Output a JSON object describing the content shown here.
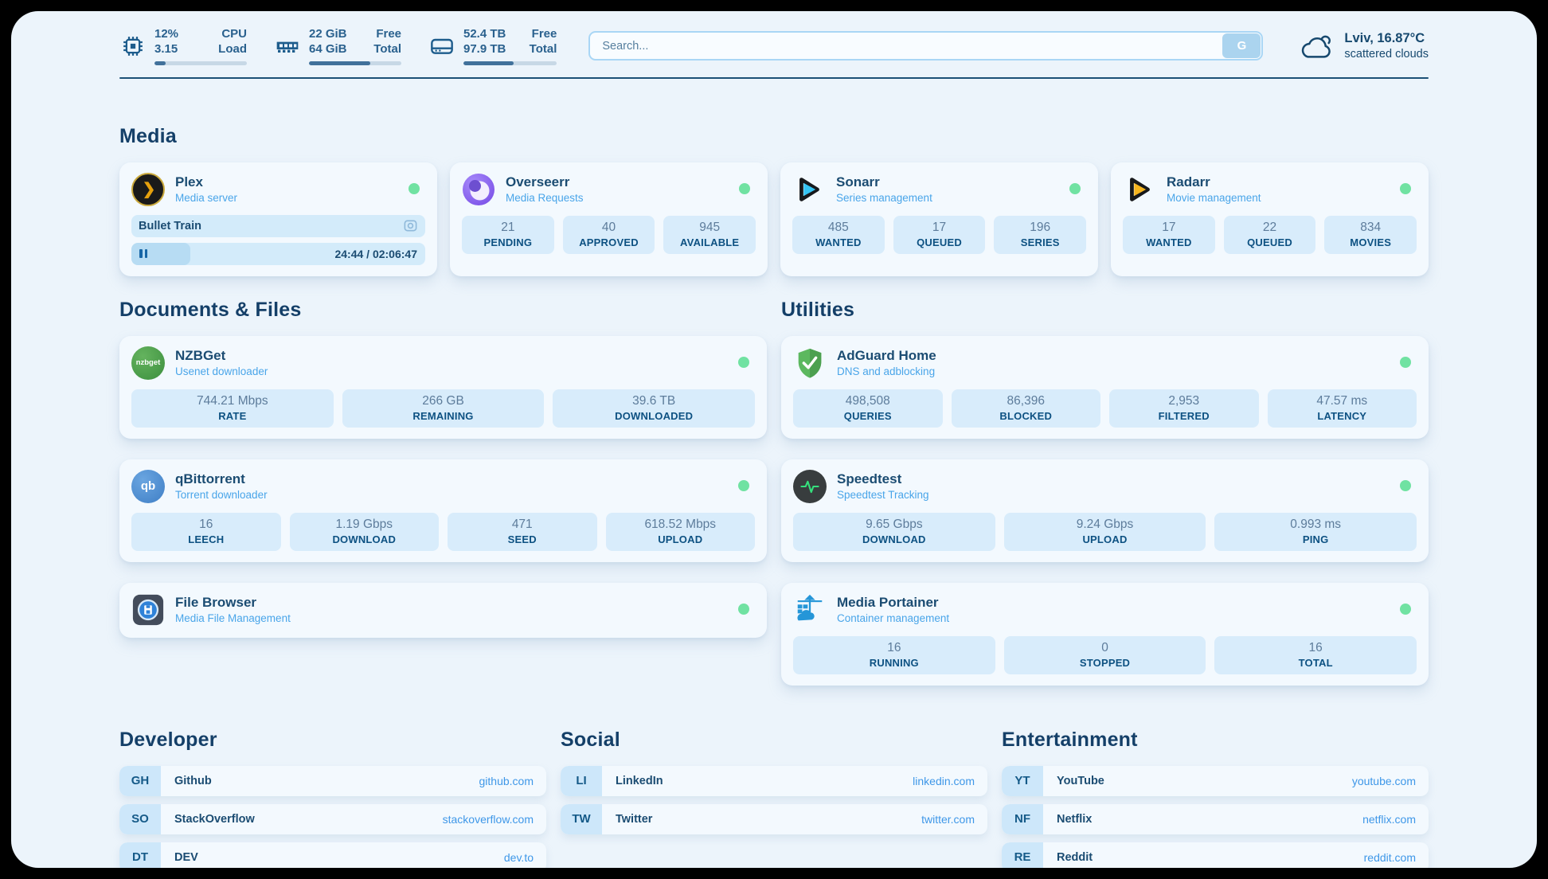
{
  "colors": {
    "page_bg": "#ecf4fb",
    "card_bg": "#f3f9fe",
    "stat_box_bg": "#d8ecfb",
    "navy_text": "#1b4c72",
    "accent_blue": "#3e97e8",
    "status_online": "#70e2a2",
    "progress_fill": "#41719b"
  },
  "header": {
    "stats": [
      {
        "icon": "cpu-icon",
        "value_top": "12%",
        "value_bottom": "3.15",
        "label_top": "CPU",
        "label_bottom": "Load",
        "progress_pct": 12
      },
      {
        "icon": "ram-icon",
        "value_top": "22 GiB",
        "value_bottom": "64 GiB",
        "label_top": "Free",
        "label_bottom": "Total",
        "progress_pct": 66
      },
      {
        "icon": "disk-icon",
        "value_top": "52.4 TB",
        "value_bottom": "97.9 TB",
        "label_top": "Free",
        "label_bottom": "Total",
        "progress_pct": 54
      }
    ],
    "search": {
      "placeholder": "Search...",
      "provider_button": "G"
    },
    "weather": {
      "icon": "cloud-icon",
      "location": "Lviv, 16.87°C",
      "condition": "scattered clouds"
    }
  },
  "media": {
    "heading": "Media",
    "plex": {
      "name": "Plex",
      "desc": "Media server",
      "now_playing": "Bullet Train",
      "progress_pct": 20,
      "time": "24:44 / 02:06:47"
    },
    "overseerr": {
      "name": "Overseerr",
      "desc": "Media Requests",
      "stats": [
        {
          "value": "21",
          "label": "PENDING"
        },
        {
          "value": "40",
          "label": "APPROVED"
        },
        {
          "value": "945",
          "label": "AVAILABLE"
        }
      ]
    },
    "sonarr": {
      "name": "Sonarr",
      "desc": "Series management",
      "stats": [
        {
          "value": "485",
          "label": "WANTED"
        },
        {
          "value": "17",
          "label": "QUEUED"
        },
        {
          "value": "196",
          "label": "SERIES"
        }
      ]
    },
    "radarr": {
      "name": "Radarr",
      "desc": "Movie management",
      "stats": [
        {
          "value": "17",
          "label": "WANTED"
        },
        {
          "value": "22",
          "label": "QUEUED"
        },
        {
          "value": "834",
          "label": "MOVIES"
        }
      ]
    }
  },
  "documents": {
    "heading": "Documents & Files",
    "nzbget": {
      "name": "NZBGet",
      "desc": "Usenet downloader",
      "badge": "nzbget",
      "stats": [
        {
          "value": "744.21 Mbps",
          "label": "RATE"
        },
        {
          "value": "266 GB",
          "label": "REMAINING"
        },
        {
          "value": "39.6 TB",
          "label": "DOWNLOADED"
        }
      ]
    },
    "qbittorrent": {
      "name": "qBittorrent",
      "desc": "Torrent downloader",
      "badge": "qb",
      "stats": [
        {
          "value": "16",
          "label": "LEECH"
        },
        {
          "value": "1.19 Gbps",
          "label": "DOWNLOAD"
        },
        {
          "value": "471",
          "label": "SEED"
        },
        {
          "value": "618.52 Mbps",
          "label": "UPLOAD"
        }
      ]
    },
    "filebrowser": {
      "name": "File Browser",
      "desc": "Media File Management"
    }
  },
  "utilities": {
    "heading": "Utilities",
    "adguard": {
      "name": "AdGuard Home",
      "desc": "DNS and adblocking",
      "stats": [
        {
          "value": "498,508",
          "label": "QUERIES"
        },
        {
          "value": "86,396",
          "label": "BLOCKED"
        },
        {
          "value": "2,953",
          "label": "FILTERED"
        },
        {
          "value": "47.57 ms",
          "label": "LATENCY"
        }
      ]
    },
    "speedtest": {
      "name": "Speedtest",
      "desc": "Speedtest Tracking",
      "stats": [
        {
          "value": "9.65 Gbps",
          "label": "DOWNLOAD"
        },
        {
          "value": "9.24 Gbps",
          "label": "UPLOAD"
        },
        {
          "value": "0.993 ms",
          "label": "PING"
        }
      ]
    },
    "portainer": {
      "name": "Media Portainer",
      "desc": "Container management",
      "stats": [
        {
          "value": "16",
          "label": "RUNNING"
        },
        {
          "value": "0",
          "label": "STOPPED"
        },
        {
          "value": "16",
          "label": "TOTAL"
        }
      ]
    }
  },
  "links": {
    "developer": {
      "heading": "Developer",
      "items": [
        {
          "abbr": "GH",
          "name": "Github",
          "url": "github.com"
        },
        {
          "abbr": "SO",
          "name": "StackOverflow",
          "url": "stackoverflow.com"
        },
        {
          "abbr": "DT",
          "name": "DEV",
          "url": "dev.to"
        }
      ]
    },
    "social": {
      "heading": "Social",
      "items": [
        {
          "abbr": "LI",
          "name": "LinkedIn",
          "url": "linkedin.com"
        },
        {
          "abbr": "TW",
          "name": "Twitter",
          "url": "twitter.com"
        }
      ]
    },
    "entertainment": {
      "heading": "Entertainment",
      "items": [
        {
          "abbr": "YT",
          "name": "YouTube",
          "url": "youtube.com"
        },
        {
          "abbr": "NF",
          "name": "Netflix",
          "url": "netflix.com"
        },
        {
          "abbr": "RE",
          "name": "Reddit",
          "url": "reddit.com"
        }
      ]
    }
  }
}
